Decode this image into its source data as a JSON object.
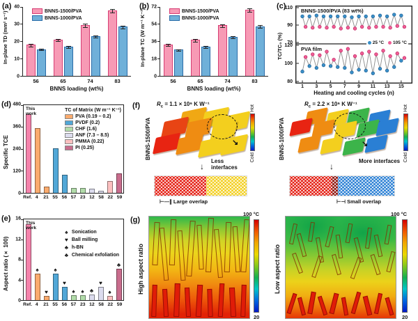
{
  "panels": {
    "a": {
      "label": "(a)"
    },
    "b": {
      "label": "(b)"
    },
    "c": {
      "label": "(c)"
    },
    "d": {
      "label": "(d)"
    },
    "e": {
      "label": "(e)"
    },
    "f": {
      "label": "(f)",
      "colorbar_hot": "Hot",
      "colorbar_cold": "Cold",
      "left": {
        "rc_sym": "R",
        "rc_sub": "c",
        "rc_val": " = 1.1 × 10⁶ K W⁻¹",
        "sample": "BNNS-1500/PVA",
        "interfaces": "Less interfaces",
        "overlap_mark": "⊢—∥",
        "overlap_label": "Large overlap"
      },
      "right": {
        "rc_sym": "R",
        "rc_sub": "c",
        "rc_val": " = 2.2 × 10⁶ K W⁻¹",
        "sample": "BNNS-1000/PVA",
        "interfaces": "More interfaces",
        "overlap_mark": "⊢⊣",
        "overlap_label": "Small overlap"
      }
    },
    "g": {
      "label": "(g)",
      "left_label": "High aspect ratio",
      "right_label": "Low aspect ratio",
      "scale_top": "100 °C",
      "scale_bottom": "20"
    }
  },
  "chart_data": [
    {
      "panel": "a",
      "type": "bar",
      "ylabel": "In-plane TD (mm² s⁻¹)",
      "xlabel": "BNNS loading (wt%)",
      "ylim": [
        0,
        40
      ],
      "yticks": [
        0,
        10,
        20,
        30,
        40
      ],
      "categories": [
        "56",
        "65",
        "74",
        "83"
      ],
      "series": [
        {
          "name": "BNNS-1500/PVA",
          "color": "#f79ab5",
          "edge": "#d63c72",
          "values": [
            18,
            21,
            29.5,
            38
          ],
          "errors": [
            0.9,
            0.9,
            1.1,
            1.3
          ]
        },
        {
          "name": "BNNS-1000/PVA",
          "color": "#6fb0d9",
          "edge": "#2b6ca8",
          "values": [
            15.5,
            17,
            23,
            28.5
          ],
          "errors": [
            0.7,
            0.7,
            0.9,
            1.0
          ]
        }
      ]
    },
    {
      "panel": "b",
      "type": "bar",
      "ylabel": "In-plane TC (W m⁻¹ K⁻¹)",
      "xlabel": "BNNS loading (wt%)",
      "ylim": [
        0,
        72
      ],
      "yticks": [
        0,
        18,
        36,
        54,
        72
      ],
      "categories": [
        "56",
        "65",
        "74",
        "83"
      ],
      "series": [
        {
          "name": "BNNS-1500/PVA",
          "color": "#f79ab5",
          "edge": "#d63c72",
          "values": [
            33,
            37.5,
            53,
            69
          ],
          "errors": [
            1.5,
            1.5,
            1.8,
            2.0
          ]
        },
        {
          "name": "BNNS-1000/PVA",
          "color": "#6fb0d9",
          "edge": "#2b6ca8",
          "values": [
            27.5,
            30.5,
            41,
            52
          ],
          "errors": [
            1.0,
            1.2,
            1.5,
            1.5
          ]
        }
      ]
    },
    {
      "panel": "c",
      "type": "line-scatter",
      "ylabel": "TC/TC₀ (%)",
      "xlabel": "Heating and cooling cycles (n)",
      "xticks": [
        1,
        3,
        5,
        7,
        9,
        11,
        13,
        15
      ],
      "xlim": [
        0.5,
        16
      ],
      "subplots": [
        {
          "title": "BNNS-1500/PVA (83 wt%)",
          "ylim": [
            70,
            110
          ],
          "yticks": [
            70,
            90,
            110
          ],
          "series": [
            {
              "name": "25 °C",
              "color": "#3a8fc8",
              "values": [
                100,
                100,
                101,
                100,
                100,
                100,
                100,
                99,
                100,
                100,
                100,
                101,
                100,
                102,
                101
              ]
            },
            {
              "name": "105 °C",
              "color": "#ef5e95",
              "values": [
                88,
                87,
                88,
                87,
                88,
                86,
                87,
                86,
                88,
                87,
                88,
                88,
                87,
                89,
                88
              ]
            }
          ]
        },
        {
          "title": "PVA film",
          "ylim": [
            80,
            120
          ],
          "yticks": [
            80,
            100,
            120
          ],
          "series": [
            {
              "name": "25 °C",
              "color": "#3a8fc8",
              "values": [
                91,
                97,
                95,
                98,
                97,
                96,
                95,
                90,
                93,
                92,
                89,
                94,
                92,
                96,
                103
              ]
            },
            {
              "name": "105 °C",
              "color": "#ef5e95",
              "values": [
                107,
                110,
                109,
                113,
                104,
                114,
                116,
                108,
                111,
                113,
                110,
                114,
                108,
                111,
                106
              ]
            }
          ]
        }
      ]
    },
    {
      "panel": "d",
      "type": "bar",
      "ylabel": "Specific TCE",
      "annotation": "This work",
      "ylim": [
        0,
        480
      ],
      "yticks": [
        0,
        120,
        240,
        360,
        480
      ],
      "categories": [
        "Ref.",
        "4",
        "21",
        "55",
        "56",
        "57",
        "23",
        "12",
        "58",
        "22",
        "59"
      ],
      "values": [
        430,
        355,
        35,
        243,
        100,
        25,
        25,
        22,
        13,
        65,
        105
      ],
      "bar_colors": [
        "#f583ac",
        "#fbab6e",
        "#fbab6e",
        "#51a7d7",
        "#51a7d7",
        "#b2dcaa",
        "#b2dcaa",
        "#dcdcee",
        "#dcdcee",
        "#fcc0c0",
        "#c96d8d"
      ],
      "legend_title": "TC of Matrix (W m⁻¹ K⁻¹)",
      "legend": [
        {
          "label": "PVA (0.19 – 0.2)",
          "color": "#fbab6e"
        },
        {
          "label": "PVDF (0.2)",
          "color": "#51a7d7"
        },
        {
          "label": "CHF (1.6)",
          "color": "#b2dcaa"
        },
        {
          "label": "ANF (7.3 – 8.5)",
          "color": "#dcdcee"
        },
        {
          "label": "PMMA (0.22)",
          "color": "#fcc0c0"
        },
        {
          "label": "PI (0.25)",
          "color": "#c96d8d"
        }
      ]
    },
    {
      "panel": "e",
      "type": "bar",
      "ylabel": "Aspect ratio (× 100)",
      "annotation": "This work",
      "ylim": [
        0,
        16
      ],
      "yticks": [
        0,
        4,
        8,
        12,
        16
      ],
      "categories": [
        "Ref.",
        "4",
        "21",
        "55",
        "56",
        "57",
        "23",
        "12",
        "58",
        "22",
        "59"
      ],
      "values": [
        15,
        5.2,
        0.8,
        5.2,
        2.6,
        0.9,
        1.0,
        1.1,
        2.6,
        0.8,
        6.2
      ],
      "bar_colors": [
        "#f583ac",
        "#fbab6e",
        "#fbab6e",
        "#51a7d7",
        "#51a7d7",
        "#b2dcaa",
        "#b2dcaa",
        "#dcdcee",
        "#dcdcee",
        "#fcc0c0",
        "#c96d8d"
      ],
      "symbols": [
        "",
        "♠",
        "♥",
        "♠",
        "♥",
        "♠",
        "♠",
        "♣",
        "♥",
        "♠",
        "♣"
      ],
      "legend": [
        {
          "symbol": "♠",
          "label": "Sonication"
        },
        {
          "symbol": "♥",
          "label": "Ball milling"
        },
        {
          "symbol": "♣",
          "label": "h-BN"
        },
        {
          "symbol": "♣",
          "label": "Chemical exfoliation"
        }
      ]
    }
  ]
}
